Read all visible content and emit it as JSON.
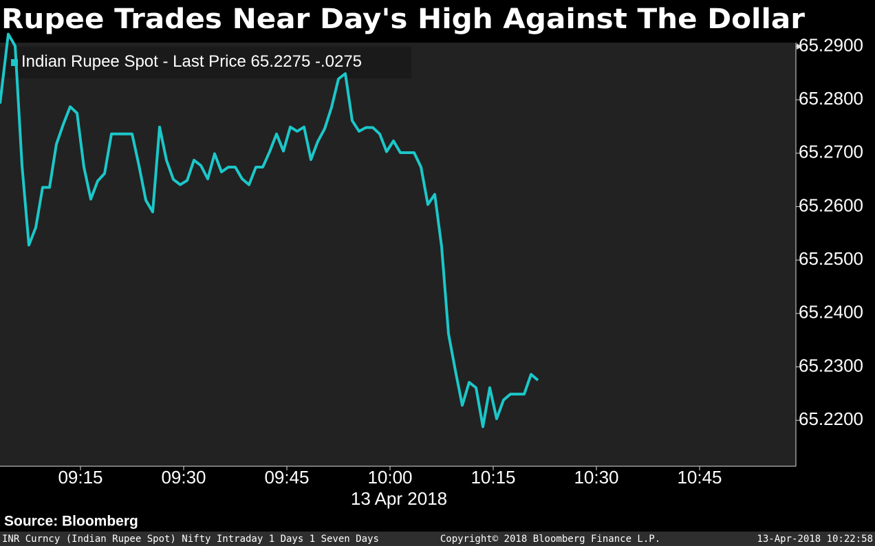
{
  "chart_data": {
    "type": "line",
    "title": "Rupee Trades Near Day's High Against The Dollar",
    "legend_price": "65.2275",
    "legend_change": "-.0275",
    "date_label": "13 Apr 2018",
    "source": "Source: Bloomberg",
    "footer_left": "INR Curncy (Indian Rupee Spot) Nifty Intraday 1 Days 1 Seven Days",
    "footer_center": "Copyright© 2018 Bloomberg Finance L.P.",
    "footer_right": "13-Apr-2018 10:22:58",
    "x": [
      543.3,
      544.5,
      545.5,
      546.5,
      547.5,
      548.5,
      549.5,
      550.5,
      551.5,
      552.5,
      553.5,
      554.5,
      555.5,
      556.5,
      557.5,
      558.5,
      559.5,
      560.5,
      561.5,
      562.5,
      563.5,
      564.5,
      565.5,
      566.5,
      567.5,
      568.5,
      569.5,
      570.5,
      571.5,
      572.5,
      573.5,
      574.5,
      575.5,
      576.5,
      577.5,
      578.5,
      579.5,
      580.5,
      581.5,
      582.5,
      583.5,
      584.5,
      585.5,
      586.5,
      587.5,
      588.5,
      589.5,
      590.5,
      591.5,
      592.5,
      593.5,
      594.5,
      595.5,
      596.5,
      597.5,
      598.5,
      599.5,
      600.5,
      601.5,
      602.5,
      603.5,
      604.5,
      605.5,
      606.5,
      607.5,
      608.5,
      609.5,
      610.5,
      611.5,
      612.5,
      613.5,
      614.5,
      615.5,
      616.5,
      617.5,
      618.5,
      619.5,
      620.5,
      621.5
    ],
    "series": [
      {
        "name": "Indian Rupee Spot - Last Price",
        "color": "#1cc7c9",
        "values": [
          65.2793,
          65.2923,
          65.2901,
          65.2677,
          65.2528,
          65.2561,
          65.2636,
          65.2636,
          65.2717,
          65.2754,
          65.2787,
          65.2775,
          65.2674,
          65.2614,
          65.2648,
          65.2662,
          65.2736,
          65.2736,
          65.2736,
          65.2736,
          65.2677,
          65.2612,
          65.259,
          65.2749,
          65.2687,
          65.2651,
          65.2641,
          65.2649,
          65.2687,
          65.2677,
          65.2652,
          65.2699,
          65.2665,
          65.2674,
          65.2674,
          65.2652,
          65.2641,
          65.2674,
          65.2674,
          65.2703,
          65.2736,
          65.2704,
          65.2749,
          65.2741,
          65.2749,
          65.2688,
          65.2722,
          65.2746,
          65.2786,
          65.2839,
          65.2849,
          65.2761,
          65.2741,
          65.2748,
          65.2748,
          65.2736,
          65.2703,
          65.2723,
          65.2701,
          65.2701,
          65.2701,
          65.2674,
          65.2604,
          65.2623,
          65.2525,
          65.2362,
          65.2293,
          65.2228,
          65.2271,
          65.2261,
          65.2188,
          65.2261,
          65.2203,
          65.2238,
          65.2249,
          65.2249,
          65.2249,
          65.2286,
          65.2275
        ]
      }
    ],
    "xlim": [
      543.3,
      659.0
    ],
    "xticks": [
      {
        "value": 555,
        "label": "09:15"
      },
      {
        "value": 570,
        "label": "09:30"
      },
      {
        "value": 585,
        "label": "09:45"
      },
      {
        "value": 600,
        "label": "10:00"
      },
      {
        "value": 615,
        "label": "10:15"
      },
      {
        "value": 630,
        "label": "10:30"
      },
      {
        "value": 645,
        "label": "10:45"
      }
    ],
    "ylim": [
      65.2114,
      65.2907
    ],
    "yticks": [
      {
        "value": 65.22,
        "label": "65.2200"
      },
      {
        "value": 65.23,
        "label": "65.2300"
      },
      {
        "value": 65.24,
        "label": "65.2400"
      },
      {
        "value": 65.25,
        "label": "65.2500"
      },
      {
        "value": 65.26,
        "label": "65.2600"
      },
      {
        "value": 65.27,
        "label": "65.2700"
      },
      {
        "value": 65.28,
        "label": "65.2800"
      },
      {
        "value": 65.29,
        "label": "65.2900"
      }
    ]
  }
}
